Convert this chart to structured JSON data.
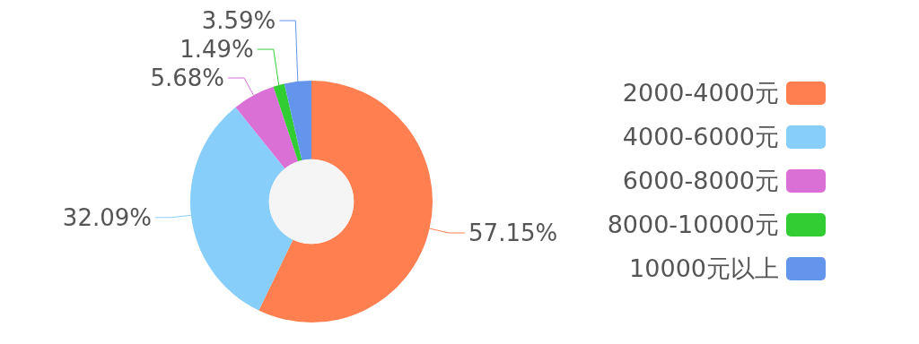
{
  "chart_data": {
    "type": "donut",
    "categories": [
      "2000-4000元",
      "4000-6000元",
      "6000-8000元",
      "8000-10000元",
      "10000元以上"
    ],
    "values": [
      57.15,
      32.09,
      5.68,
      1.49,
      3.59
    ],
    "value_labels": [
      "57.15%",
      "32.09%",
      "5.68%",
      "1.49%",
      "3.59%"
    ],
    "colors": [
      "#ff7f50",
      "#87cefa",
      "#da70d6",
      "#32cd32",
      "#6495ed"
    ],
    "legend": "right"
  }
}
